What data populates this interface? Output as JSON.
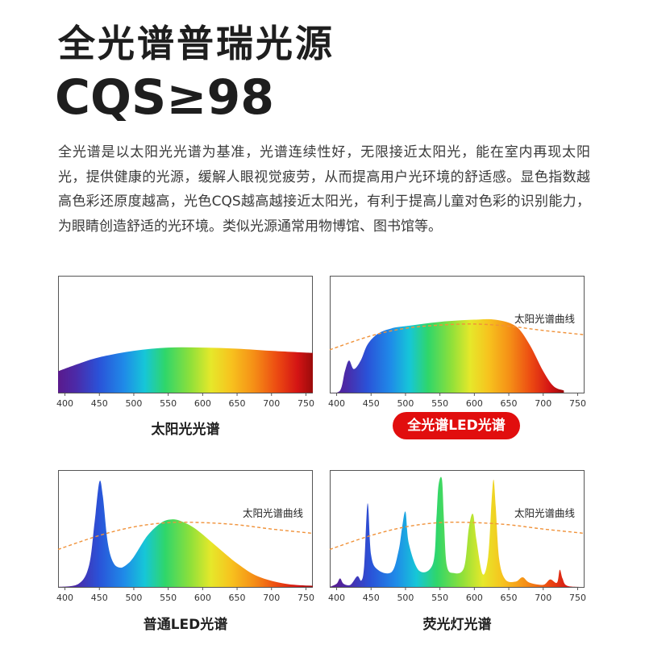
{
  "header": {
    "title": "全光谱普瑞光源",
    "cqs": "CQS≥98",
    "description": "全光谱是以太阳光光谱为基准，光谱连续性好，无限接近太阳光，能在室内再现太阳光，提供健康的光源，缓解人眼视觉疲劳，从而提高用户光环境的舒适感。显色指数越高色彩还原度越高，光色CQS越高越接近太阳光，有利于提高儿童对色彩的识别能力，为眼睛创造舒适的光环境。类似光源通常用物博馆、图书馆等。"
  },
  "colors": {
    "highlight_pill": "#e10e0e",
    "reference_curve": "#f0923a",
    "axis": "#555555"
  },
  "chart_data": [
    {
      "type": "area",
      "caption": "太阳光光谱",
      "curve_label": "",
      "x_ticks": [
        400,
        450,
        500,
        550,
        600,
        650,
        700,
        750
      ],
      "xlim": [
        390,
        760
      ],
      "fill": "visible-spectrum gradient",
      "series": [
        {
          "x": [
            390,
            420,
            450,
            500,
            550,
            600,
            650,
            700,
            760
          ],
          "y": [
            0.2,
            0.27,
            0.33,
            0.39,
            0.42,
            0.42,
            0.41,
            0.39,
            0.37
          ]
        }
      ]
    },
    {
      "type": "area",
      "caption": "全光谱LED光谱",
      "highlighted": true,
      "curve_label": "太阳光谱曲线",
      "x_ticks": [
        400,
        450,
        500,
        550,
        600,
        650,
        700,
        750
      ],
      "xlim": [
        390,
        760
      ],
      "fill": "visible-spectrum gradient",
      "series": [
        {
          "x": [
            390,
            405,
            412,
            418,
            425,
            435,
            445,
            460,
            480,
            500,
            550,
            600,
            630,
            660,
            680,
            700,
            715,
            730
          ],
          "y": [
            0.0,
            0.02,
            0.2,
            0.3,
            0.22,
            0.3,
            0.45,
            0.55,
            0.6,
            0.62,
            0.66,
            0.68,
            0.68,
            0.62,
            0.45,
            0.2,
            0.06,
            0.02
          ]
        }
      ],
      "reference_curve": {
        "x": [
          390,
          450,
          500,
          550,
          600,
          650,
          700,
          760
        ],
        "y": [
          0.4,
          0.53,
          0.6,
          0.63,
          0.64,
          0.62,
          0.58,
          0.54
        ]
      }
    },
    {
      "type": "area",
      "caption": "普通LED光谱",
      "curve_label": "太阳光谱曲线",
      "x_ticks": [
        400,
        450,
        500,
        550,
        600,
        650,
        700,
        750
      ],
      "xlim": [
        390,
        760
      ],
      "fill": "visible-spectrum gradient",
      "series": [
        {
          "x": [
            390,
            420,
            435,
            443,
            450,
            455,
            462,
            470,
            480,
            490,
            500,
            520,
            540,
            555,
            570,
            590,
            620,
            650,
            680,
            720,
            760
          ],
          "y": [
            0.0,
            0.03,
            0.2,
            0.6,
            0.98,
            0.85,
            0.42,
            0.23,
            0.18,
            0.21,
            0.28,
            0.48,
            0.6,
            0.63,
            0.61,
            0.54,
            0.38,
            0.22,
            0.1,
            0.03,
            0.01
          ]
        }
      ],
      "reference_curve": {
        "x": [
          390,
          450,
          500,
          550,
          600,
          650,
          700,
          760
        ],
        "y": [
          0.35,
          0.48,
          0.56,
          0.6,
          0.6,
          0.58,
          0.54,
          0.5
        ]
      }
    },
    {
      "type": "area",
      "caption": "荧光灯光谱",
      "curve_label": "太阳光谱曲线",
      "x_ticks": [
        400,
        450,
        500,
        550,
        600,
        650,
        700,
        750
      ],
      "xlim": [
        390,
        760
      ],
      "fill": "visible-spectrum gradient",
      "series": [
        {
          "x": [
            390,
            400,
            405,
            410,
            420,
            430,
            436,
            440,
            445,
            450,
            460,
            480,
            490,
            495,
            500,
            505,
            520,
            540,
            545,
            548,
            553,
            556,
            560,
            570,
            585,
            592,
            598,
            603,
            612,
            620,
            625,
            628,
            631,
            636,
            645,
            660,
            670,
            680,
            700,
            710,
            720,
            724,
            728,
            735,
            760
          ],
          "y": [
            0.0,
            0.03,
            0.08,
            0.03,
            0.02,
            0.1,
            0.06,
            0.2,
            0.78,
            0.3,
            0.16,
            0.14,
            0.34,
            0.55,
            0.7,
            0.4,
            0.15,
            0.22,
            0.65,
            0.95,
            1.0,
            0.6,
            0.2,
            0.13,
            0.18,
            0.55,
            0.68,
            0.44,
            0.12,
            0.28,
            0.8,
            1.0,
            0.75,
            0.26,
            0.07,
            0.05,
            0.09,
            0.04,
            0.02,
            0.07,
            0.04,
            0.16,
            0.08,
            0.01,
            0.0
          ]
        }
      ],
      "reference_curve": {
        "x": [
          390,
          450,
          500,
          550,
          600,
          650,
          700,
          760
        ],
        "y": [
          0.35,
          0.48,
          0.56,
          0.6,
          0.6,
          0.58,
          0.54,
          0.5
        ]
      }
    }
  ]
}
